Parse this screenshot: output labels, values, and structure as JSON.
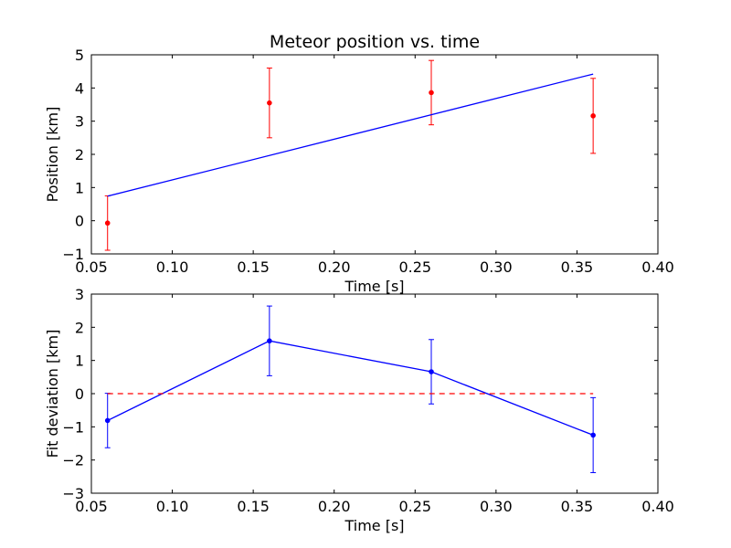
{
  "chart_data": [
    {
      "type": "scatter",
      "title": "Meteor position vs. time",
      "xlabel": "Time [s]",
      "ylabel": "Position [km]",
      "xlim": [
        0.05,
        0.4
      ],
      "ylim": [
        -1,
        5
      ],
      "xticks": [
        "0.05",
        "0.10",
        "0.15",
        "0.20",
        "0.25",
        "0.30",
        "0.35",
        "0.40"
      ],
      "yticks": [
        "−1",
        "0",
        "1",
        "2",
        "3",
        "4",
        "5"
      ],
      "grid": false,
      "series": [
        {
          "kind": "errorbar",
          "color": "#ff0000",
          "x": [
            0.06,
            0.16,
            0.26,
            0.36
          ],
          "y": [
            -0.07,
            3.55,
            3.86,
            3.16
          ],
          "yerr": [
            0.82,
            1.05,
            0.97,
            1.13
          ]
        },
        {
          "kind": "line",
          "color": "#0000ff",
          "x": [
            0.06,
            0.36
          ],
          "y": [
            0.74,
            4.42
          ]
        }
      ]
    },
    {
      "type": "line",
      "title": "",
      "xlabel": "Time [s]",
      "ylabel": "Fit deviation [km]",
      "xlim": [
        0.05,
        0.4
      ],
      "ylim": [
        -3,
        3
      ],
      "xticks": [
        "0.05",
        "0.10",
        "0.15",
        "0.20",
        "0.25",
        "0.30",
        "0.35",
        "0.40"
      ],
      "yticks": [
        "−3",
        "−2",
        "−1",
        "0",
        "1",
        "2",
        "3"
      ],
      "grid": false,
      "series": [
        {
          "kind": "errorbar-line",
          "color": "#0000ff",
          "x": [
            0.06,
            0.16,
            0.26,
            0.36
          ],
          "y": [
            -0.81,
            1.59,
            0.66,
            -1.25
          ],
          "yerr": [
            0.82,
            1.05,
            0.97,
            1.13
          ]
        },
        {
          "kind": "dashed",
          "color": "#ff0000",
          "x": [
            0.06,
            0.36
          ],
          "y": [
            0,
            0
          ]
        }
      ]
    }
  ]
}
